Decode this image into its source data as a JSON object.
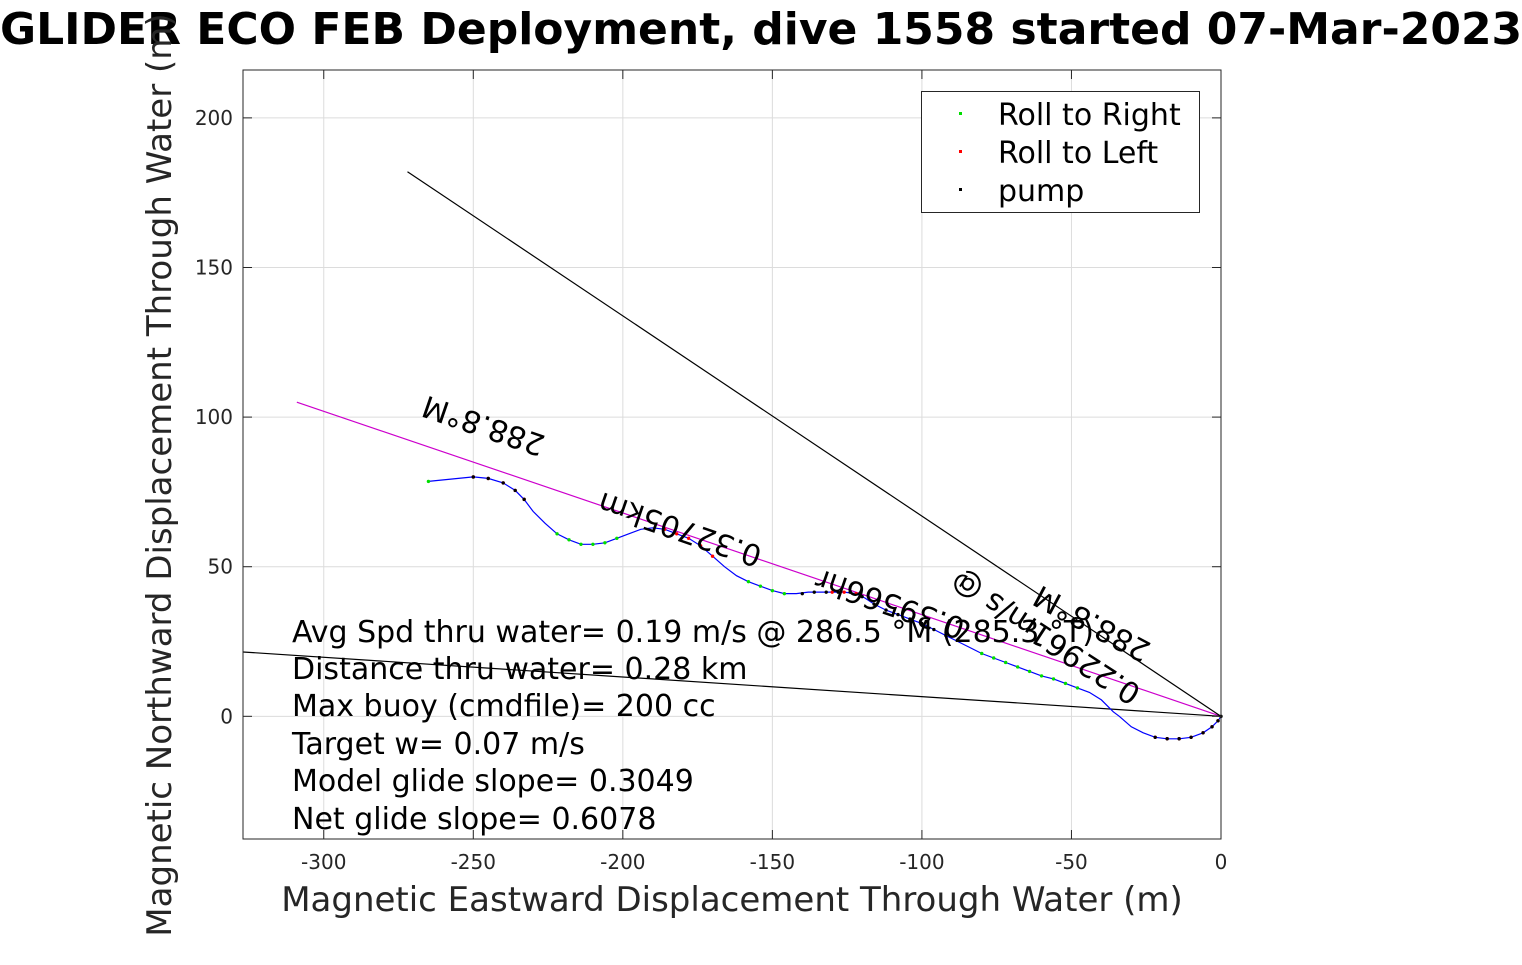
{
  "title": "GLIDER ECO FEB Deployment, dive 1558 started 07-Mar-2023",
  "chart_data": {
    "type": "scatter",
    "title": "GLIDER ECO FEB Deployment, dive 1558 started 07-Mar-2023",
    "xlabel": "Magnetic Eastward Displacement Through Water (m)",
    "ylabel": "Magnetic Northward Displacement Through Water (m)",
    "xlim": [
      -327,
      0
    ],
    "ylim": [
      -41,
      216
    ],
    "xticks": [
      -300,
      -250,
      -200,
      -150,
      -100,
      -50,
      0
    ],
    "yticks": [
      0,
      50,
      100,
      150,
      200
    ],
    "xtick_labels": [
      "-300",
      "-250",
      "-200",
      "-150",
      "-100",
      "-50",
      "0"
    ],
    "ytick_labels": [
      "0",
      "50",
      "100",
      "150",
      "200"
    ],
    "grid": true,
    "legend_position": "top-right",
    "legend": [
      {
        "name": "Roll to Right",
        "color": "#00dd00"
      },
      {
        "name": "Roll to Left",
        "color": "#ff0000"
      },
      {
        "name": "pump",
        "color": "#000000"
      }
    ],
    "track": {
      "color": "#0000ff",
      "x": [
        -265,
        -250,
        -245,
        -240,
        -236,
        -233,
        -230,
        -226,
        -222,
        -218,
        -214,
        -210,
        -206,
        -202,
        -198,
        -194,
        -190,
        -186,
        -182,
        -178,
        -174,
        -170,
        -166,
        -162,
        -158,
        -154,
        -150,
        -146,
        -142,
        -138,
        -134,
        -130,
        -126,
        -122,
        -119,
        -116,
        -112,
        -108,
        -104,
        -100,
        -96,
        -92,
        -88,
        -84,
        -80,
        -76,
        -72,
        -68,
        -64,
        -60,
        -56,
        -52,
        -48,
        -44,
        -40,
        -36,
        -34,
        -30,
        -26,
        -22,
        -18,
        -14,
        -10,
        -6,
        -3,
        -1,
        0
      ],
      "y": [
        78.5,
        80,
        79.5,
        78,
        75.5,
        72.5,
        68.5,
        64.5,
        61,
        59,
        57.5,
        57.5,
        58,
        59.5,
        61,
        62.5,
        63,
        62.5,
        61,
        59.5,
        57,
        53.5,
        50,
        47,
        45,
        43.5,
        42,
        41,
        41,
        41.5,
        41.5,
        41.5,
        41.5,
        41,
        39.5,
        37.5,
        35.5,
        34,
        32.5,
        31,
        29,
        27,
        25,
        23,
        21,
        19.5,
        18,
        16.5,
        15,
        13.5,
        12.5,
        11,
        9.5,
        8,
        5.5,
        1.5,
        0,
        -3.5,
        -5.5,
        -7,
        -7.5,
        -7.5,
        -7,
        -5.5,
        -3.5,
        -1.5,
        0
      ]
    },
    "roll_right_points": {
      "color": "#00dd00",
      "x": [
        -265,
        -222,
        -218,
        -214,
        -210,
        -206,
        -202,
        -158,
        -154,
        -150,
        -146,
        -80,
        -76,
        -72,
        -68,
        -64,
        -60,
        -56,
        -52,
        -48
      ],
      "y": [
        78.5,
        61,
        59,
        57.5,
        57.5,
        58,
        59.5,
        45,
        43.5,
        42,
        41,
        21,
        19.5,
        18,
        16.5,
        15,
        13.5,
        12.5,
        11,
        9.5
      ]
    },
    "roll_left_points": {
      "color": "#ff0000",
      "x": [
        -250,
        -245,
        -240,
        -236,
        -233,
        -186,
        -182,
        -178,
        -174,
        -170,
        -130,
        -126,
        -122,
        -22,
        -18,
        -14,
        -10,
        -6,
        -3,
        -1
      ],
      "y": [
        80,
        79.5,
        78,
        75.5,
        72.5,
        62.5,
        61,
        59.5,
        57,
        53.5,
        41.5,
        41.5,
        41,
        -7,
        -7.5,
        -7.5,
        -7,
        -5.5,
        -3.5,
        -1.5
      ]
    },
    "pump_points": {
      "color": "#000000",
      "x": [
        -250,
        -245,
        -240,
        -236,
        -233,
        -140,
        -136,
        -132,
        -128,
        -124,
        -120,
        -116,
        -112,
        -108,
        -104,
        -100,
        -96,
        -92,
        -22,
        -18,
        -14,
        -10,
        -6,
        -3,
        -1,
        0
      ],
      "y": [
        80,
        79.5,
        78,
        75.5,
        72.5,
        41,
        41.5,
        41.5,
        41.5,
        41.5,
        40,
        37.5,
        35.5,
        34,
        32.5,
        31,
        29,
        27,
        -7,
        -7.5,
        -7.5,
        -7,
        -5.5,
        -3.5,
        -1.5,
        0
      ]
    },
    "lines": [
      {
        "name": "heading-line",
        "color": "#cc00cc",
        "x": [
          -309,
          0
        ],
        "y": [
          105,
          0
        ]
      },
      {
        "name": "current-line",
        "color": "#000000",
        "x": [
          -272,
          0
        ],
        "y": [
          182,
          0
        ]
      },
      {
        "name": "drift-line",
        "color": "#000000",
        "x": [
          -327,
          0
        ],
        "y": [
          21.5,
          0
        ]
      }
    ],
    "annotations": [
      "Avg Spd thru water=  0.19 m/s @ 286.5 °M (285.3 °T)",
      "Distance thru water=  0.28 km",
      "Max buoy (cmdfile)= 200 cc",
      "Target w= 0.07 m/s",
      "Model glide slope= 0.3049",
      "Net glide slope= 0.6078"
    ],
    "rotated_labels": [
      {
        "text": "288.8°M"
      },
      {
        "text": "0.32705km"
      },
      {
        "text": "0.39566hr"
      },
      {
        "text": "0.22961m/s @"
      },
      {
        "text": "288.8°M"
      }
    ]
  }
}
